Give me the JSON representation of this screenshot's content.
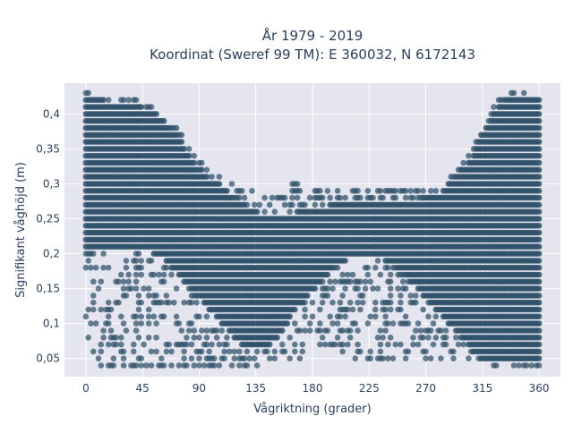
{
  "chart_data": {
    "type": "scatter",
    "title_lines": [
      "År 1979 - 2019",
      "Koordinat (Sweref 99 TM): E 360032, N 6172143"
    ],
    "xlabel": "Vågriktning (grader)",
    "ylabel": "Signifikant våghöjd (m)",
    "xlim": [
      -17,
      377
    ],
    "ylim": [
      0.024,
      0.444
    ],
    "x_ticks": [
      0,
      45,
      90,
      135,
      180,
      225,
      270,
      315,
      360
    ],
    "x_tick_labels": [
      "0",
      "45",
      "90",
      "135",
      "180",
      "225",
      "270",
      "315",
      "360"
    ],
    "y_ticks": [
      0.05,
      0.1,
      0.15,
      0.2,
      0.25,
      0.3,
      0.35,
      0.4
    ],
    "y_tick_labels": [
      "0,05",
      "0,1",
      "0,15",
      "0,2",
      "0,25",
      "0,3",
      "0,35",
      "0,4"
    ],
    "grid": true,
    "legend": "none",
    "marker_color": "#2e5068",
    "plot_background": "#e5e5f0",
    "x_step": 2,
    "y_step": 0.01,
    "envelope": {
      "direction": [
        0,
        10,
        20,
        30,
        40,
        50,
        55,
        60,
        65,
        70,
        75,
        80,
        85,
        90,
        95,
        100,
        105,
        110,
        115,
        120,
        125,
        130,
        135,
        140,
        145,
        150,
        155,
        160,
        165,
        170,
        175,
        180,
        185,
        190,
        195,
        200,
        205,
        210,
        215,
        220,
        225,
        230,
        235,
        240,
        245,
        250,
        255,
        260,
        265,
        270,
        275,
        280,
        285,
        290,
        295,
        300,
        305,
        310,
        315,
        320,
        325,
        330,
        335,
        340,
        345,
        350,
        355,
        360
      ],
      "dense_top": [
        0.42,
        0.42,
        0.41,
        0.41,
        0.41,
        0.4,
        0.4,
        0.39,
        0.38,
        0.37,
        0.36,
        0.34,
        0.33,
        0.32,
        0.31,
        0.3,
        0.3,
        0.29,
        0.28,
        0.27,
        0.27,
        0.26,
        0.26,
        0.25,
        0.25,
        0.25,
        0.25,
        0.25,
        0.25,
        0.26,
        0.26,
        0.26,
        0.26,
        0.26,
        0.27,
        0.27,
        0.27,
        0.27,
        0.27,
        0.27,
        0.27,
        0.27,
        0.27,
        0.27,
        0.27,
        0.27,
        0.27,
        0.27,
        0.27,
        0.28,
        0.28,
        0.28,
        0.29,
        0.3,
        0.31,
        0.32,
        0.33,
        0.35,
        0.37,
        0.38,
        0.4,
        0.41,
        0.42,
        0.42,
        0.42,
        0.42,
        0.42,
        0.42
      ],
      "dense_bottom": [
        0.21,
        0.21,
        0.21,
        0.21,
        0.21,
        0.21,
        0.2,
        0.2,
        0.19,
        0.18,
        0.17,
        0.16,
        0.15,
        0.14,
        0.13,
        0.12,
        0.11,
        0.1,
        0.09,
        0.08,
        0.07,
        0.07,
        0.07,
        0.07,
        0.07,
        0.08,
        0.09,
        0.1,
        0.12,
        0.13,
        0.14,
        0.15,
        0.16,
        0.17,
        0.18,
        0.19,
        0.19,
        0.2,
        0.2,
        0.2,
        0.2,
        0.2,
        0.2,
        0.19,
        0.19,
        0.18,
        0.17,
        0.16,
        0.15,
        0.14,
        0.13,
        0.12,
        0.11,
        0.1,
        0.09,
        0.08,
        0.07,
        0.06,
        0.05,
        0.05,
        0.05,
        0.05,
        0.05,
        0.05,
        0.05,
        0.05,
        0.05,
        0.05
      ],
      "scatter_top": [
        0.43,
        0.42,
        0.42,
        0.42,
        0.42,
        0.41,
        0.41,
        0.4,
        0.39,
        0.38,
        0.37,
        0.35,
        0.34,
        0.33,
        0.32,
        0.31,
        0.31,
        0.3,
        0.3,
        0.29,
        0.29,
        0.29,
        0.28,
        0.28,
        0.28,
        0.28,
        0.28,
        0.29,
        0.31,
        0.29,
        0.29,
        0.29,
        0.29,
        0.29,
        0.29,
        0.29,
        0.29,
        0.29,
        0.29,
        0.29,
        0.29,
        0.29,
        0.29,
        0.29,
        0.29,
        0.29,
        0.29,
        0.29,
        0.29,
        0.29,
        0.3,
        0.3,
        0.3,
        0.31,
        0.32,
        0.33,
        0.34,
        0.36,
        0.38,
        0.4,
        0.41,
        0.42,
        0.43,
        0.43,
        0.43,
        0.43,
        0.43,
        0.43
      ],
      "scatter_bottom": [
        0.05,
        0.04,
        0.04,
        0.04,
        0.04,
        0.04,
        0.04,
        0.04,
        0.04,
        0.04,
        0.04,
        0.04,
        0.04,
        0.04,
        0.04,
        0.04,
        0.04,
        0.04,
        0.04,
        0.04,
        0.04,
        0.04,
        0.04,
        0.05,
        0.05,
        0.05,
        0.05,
        0.05,
        0.05,
        0.05,
        0.06,
        0.07,
        0.07,
        0.07,
        0.07,
        0.07,
        0.06,
        0.06,
        0.05,
        0.05,
        0.05,
        0.05,
        0.05,
        0.05,
        0.05,
        0.05,
        0.05,
        0.05,
        0.05,
        0.05,
        0.05,
        0.05,
        0.05,
        0.05,
        0.05,
        0.05,
        0.05,
        0.05,
        0.04,
        0.04,
        0.04,
        0.04,
        0.04,
        0.04,
        0.04,
        0.04,
        0.04,
        0.04
      ]
    }
  }
}
